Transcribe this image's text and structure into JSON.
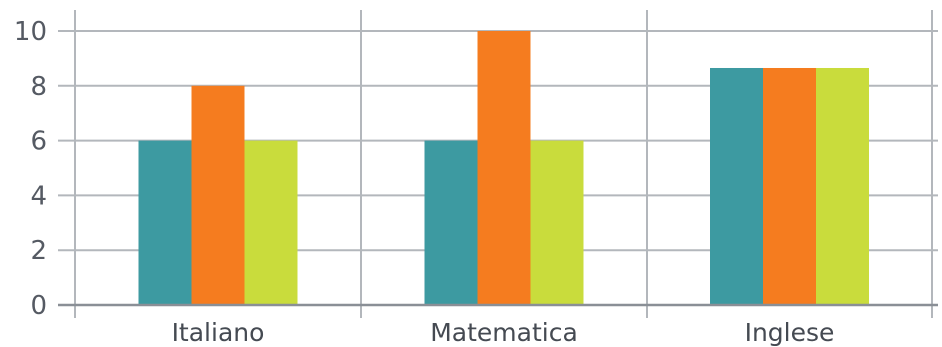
{
  "chart_data": {
    "type": "bar",
    "title": "",
    "xlabel": "",
    "ylabel": "",
    "categories": [
      "Italiano",
      "Matematica",
      "Inglese"
    ],
    "series": [
      {
        "values": [
          6,
          6,
          8.65
        ],
        "color": "#3d9aa1"
      },
      {
        "values": [
          8,
          10,
          8.65
        ],
        "color": "#f57c1f"
      },
      {
        "values": [
          6,
          6,
          8.65
        ],
        "color": "#c9dc3c"
      }
    ],
    "ylim": [
      0,
      10
    ],
    "yticks": [
      "0",
      "2",
      "4",
      "6",
      "8",
      "10"
    ],
    "grid": true,
    "legend": "none"
  },
  "colors": {
    "grid": "#b3b7bc",
    "axis": "#8a8f96",
    "text": "#555a63"
  }
}
